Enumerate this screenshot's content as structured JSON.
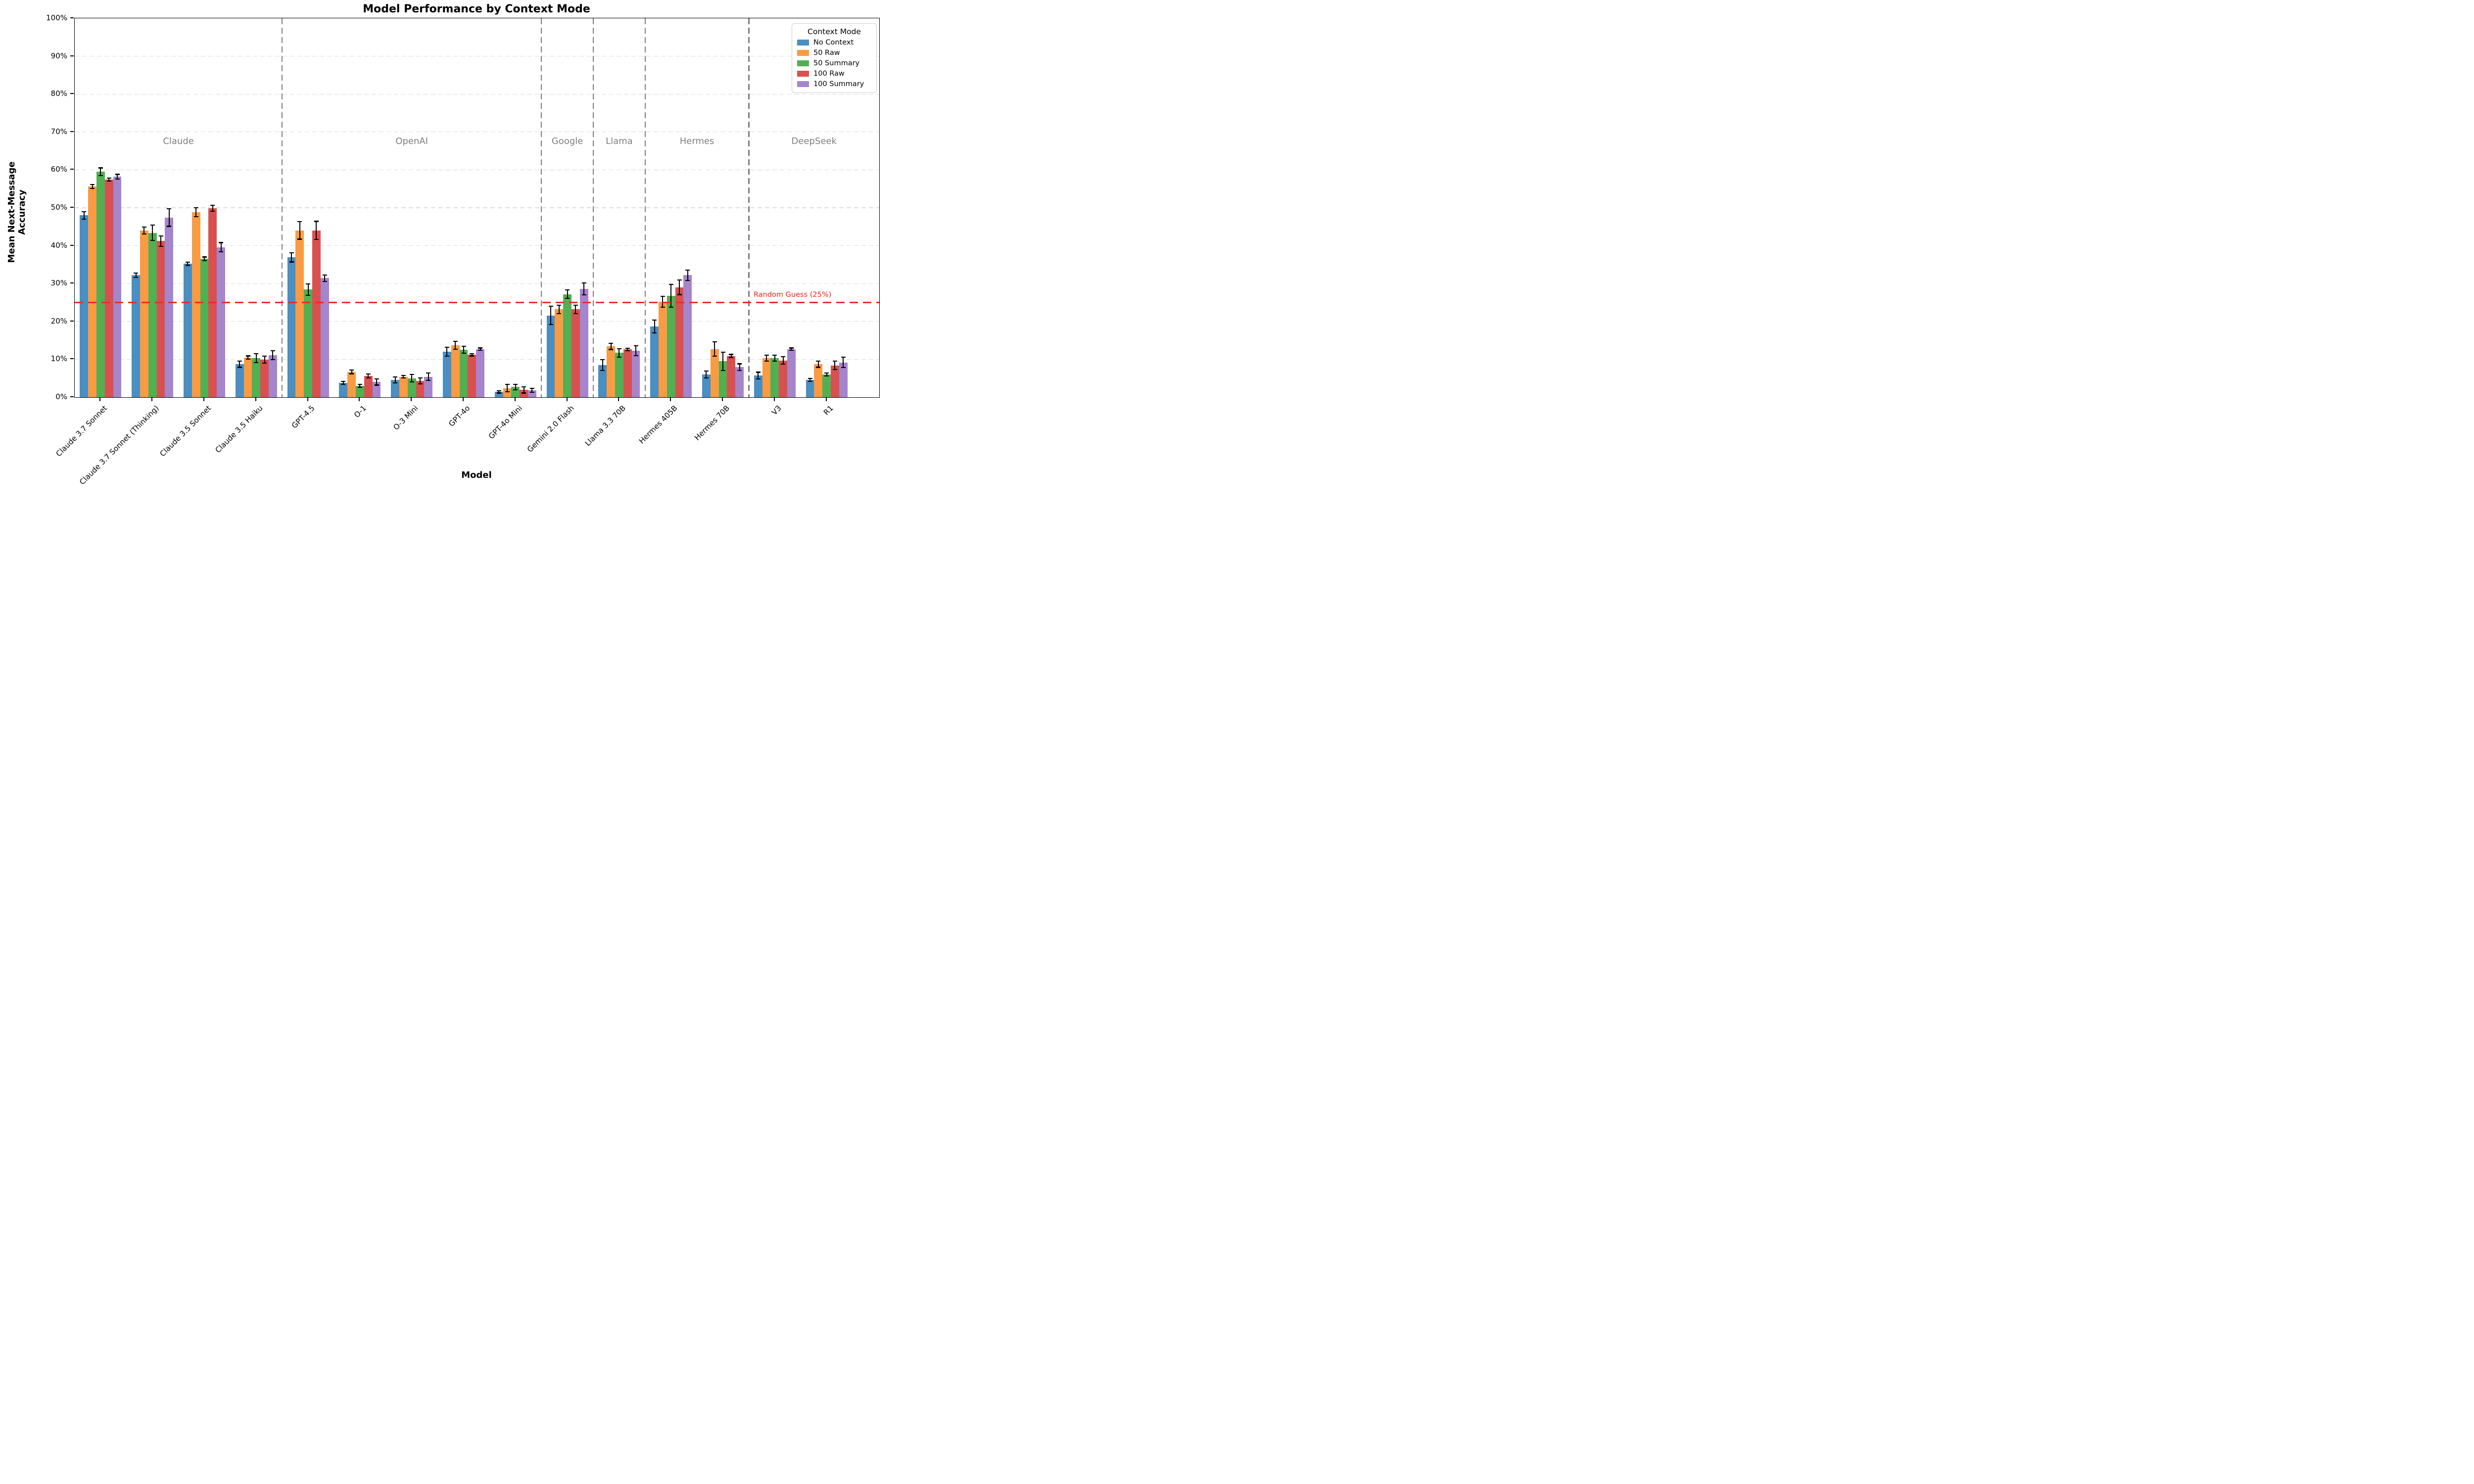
{
  "chart_data": {
    "type": "bar",
    "title": "Model Performance by Context Mode",
    "xlabel": "Model",
    "ylabel": "Mean Next-Message Accuracy",
    "ylim": [
      0,
      100
    ],
    "y_tick_step": 10,
    "y_tick_labels": [
      "0%",
      "10%",
      "20%",
      "30%",
      "40%",
      "50%",
      "60%",
      "70%",
      "80%",
      "90%",
      "100%"
    ],
    "grid": "horizontal-dashed",
    "legend_title": "Context Mode",
    "legend_position": "upper right",
    "categories": [
      "Claude 3.7 Sonnet",
      "Claude 3.7 Sonnet (Thinking)",
      "Claude 3.5 Sonnet",
      "Claude 3.5 Haiku",
      "GPT-4.5",
      "O-1",
      "O-3 Mini",
      "GPT-4o",
      "GPT-4o Mini",
      "Gemini 2.0 Flash",
      "Llama 3.3 70B",
      "Hermes 405B",
      "Hermes 70B",
      "V3",
      "R1"
    ],
    "sections": [
      {
        "label": "Claude",
        "count": 4
      },
      {
        "label": "OpenAI",
        "count": 5
      },
      {
        "label": "Google",
        "count": 1
      },
      {
        "label": "Llama",
        "count": 1
      },
      {
        "label": "Hermes",
        "count": 2
      },
      {
        "label": "DeepSeek",
        "count": 2
      }
    ],
    "series": [
      {
        "name": "No Context",
        "color": "#4A8EC2",
        "values": [
          48.0,
          32.2,
          35.2,
          8.7,
          36.9,
          3.8,
          4.6,
          12.0,
          1.4,
          21.6,
          8.5,
          18.7,
          6.0,
          5.7,
          4.6
        ],
        "errors": [
          1.0,
          0.6,
          0.4,
          0.8,
          1.2,
          0.4,
          0.8,
          1.2,
          0.3,
          2.4,
          1.4,
          1.7,
          0.9,
          0.9,
          0.4
        ]
      },
      {
        "name": "50 Raw",
        "color": "#F99B42",
        "values": [
          55.6,
          44.0,
          48.8,
          10.5,
          44.0,
          6.7,
          5.4,
          13.7,
          2.4,
          23.2,
          13.4,
          25.2,
          12.7,
          10.3,
          8.7
        ],
        "errors": [
          0.5,
          0.9,
          1.2,
          0.4,
          2.3,
          0.5,
          0.3,
          1.0,
          1.0,
          1.1,
          0.8,
          1.4,
          1.9,
          0.8,
          0.8
        ]
      },
      {
        "name": "50 Summary",
        "color": "#52AF52",
        "values": [
          59.5,
          43.4,
          36.5,
          10.3,
          28.4,
          3.0,
          5.0,
          12.5,
          2.7,
          27.2,
          11.7,
          26.8,
          9.5,
          10.3,
          6.0
        ],
        "errors": [
          1.0,
          2.0,
          0.5,
          1.2,
          1.5,
          0.4,
          1.0,
          0.9,
          0.7,
          1.1,
          1.1,
          3.0,
          2.4,
          0.8,
          0.4
        ]
      },
      {
        "name": "100 Raw",
        "color": "#D95050",
        "values": [
          57.4,
          41.2,
          49.9,
          9.9,
          44.0,
          5.6,
          4.3,
          11.2,
          1.9,
          23.2,
          12.6,
          29.0,
          10.9,
          9.7,
          8.4
        ],
        "errors": [
          0.4,
          1.4,
          0.8,
          0.9,
          2.4,
          0.5,
          0.8,
          0.3,
          0.8,
          1.1,
          0.3,
          1.9,
          0.4,
          1.0,
          1.1
        ]
      },
      {
        "name": "100 Summary",
        "color": "#A585CB",
        "values": [
          58.2,
          47.4,
          39.6,
          11.1,
          31.4,
          4.0,
          5.4,
          12.7,
          1.8,
          28.6,
          12.3,
          32.2,
          7.9,
          12.7,
          9.2
        ],
        "errors": [
          0.6,
          2.3,
          1.2,
          1.2,
          0.8,
          0.8,
          1.0,
          0.3,
          0.5,
          1.6,
          1.3,
          1.4,
          0.9,
          0.3,
          1.4
        ]
      }
    ],
    "reference_line": {
      "label": "Random Guess (25%)",
      "y": 25,
      "color": "#ED2121",
      "style": "dashed"
    },
    "colors": {
      "grid": "#DCDCDC",
      "separator": "#7D7D7D",
      "section_label": "#7F7F7F",
      "spine": "#000000",
      "error_bar": "#000000"
    }
  }
}
